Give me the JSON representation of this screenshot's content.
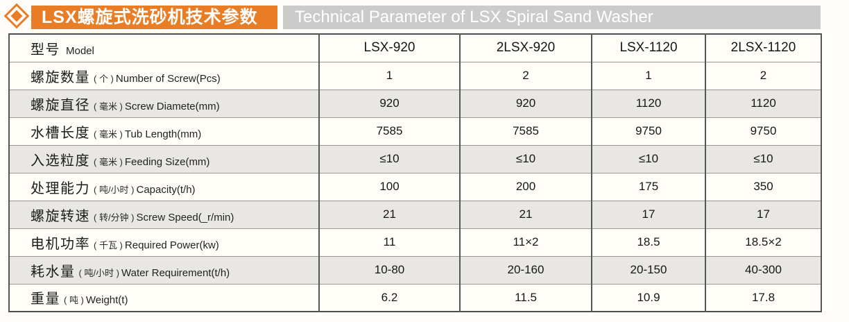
{
  "colors": {
    "accent_orange": "#e87d26",
    "banner_gray": "#cbcbcb",
    "row_shade": "#e9e7e3",
    "row_white": "#fffdf7",
    "border_dark": "#565656",
    "border_light": "#979590"
  },
  "header": {
    "icon": "diamond-icon",
    "title_zh": "LSX螺旋式洗砂机技术参数",
    "title_en": "Technical Parameter of LSX Spiral Sand Washer"
  },
  "table": {
    "rows": [
      {
        "zh": "型号",
        "paren": "",
        "en": "Model",
        "values": [
          "LSX-920",
          "2LSX-920",
          "LSX-1120",
          "2LSX-1120"
        ]
      },
      {
        "zh": "螺旋数量",
        "paren": "( 个 )",
        "en": "Number of Screw(Pcs)",
        "values": [
          "1",
          "2",
          "1",
          "2"
        ]
      },
      {
        "zh": "螺旋直径",
        "paren": "( 毫米 )",
        "en": "Screw Diamete(mm)",
        "values": [
          "920",
          "920",
          "1120",
          "1120"
        ]
      },
      {
        "zh": "水槽长度",
        "paren": "( 毫米 )",
        "en": "Tub Length(mm)",
        "values": [
          "7585",
          "7585",
          "9750",
          "9750"
        ]
      },
      {
        "zh": "入选粒度",
        "paren": "( 毫米 )",
        "en": "Feeding Size(mm)",
        "values": [
          "≤10",
          "≤10",
          "≤10",
          "≤10"
        ]
      },
      {
        "zh": "处理能力",
        "paren": "( 吨/小时 )",
        "en": "Capacity(t/h)",
        "values": [
          "100",
          "200",
          "175",
          "350"
        ]
      },
      {
        "zh": "螺旋转速",
        "paren": "( 转/分钟 )",
        "en": "Screw Speed(_r/min)",
        "values": [
          "21",
          "21",
          "17",
          "17"
        ]
      },
      {
        "zh": "电机功率",
        "paren": "( 千瓦 )",
        "en": "Required Power(kw)",
        "values": [
          "11",
          "11×2",
          "18.5",
          "18.5×2"
        ]
      },
      {
        "zh": "耗水量",
        "paren": "( 吨/小时 )",
        "en": "Water Requirement(t/h)",
        "values": [
          "10-80",
          "20-160",
          "20-150",
          "40-300"
        ]
      },
      {
        "zh": "重量",
        "paren": "( 吨 )",
        "en": "Weight(t)",
        "values": [
          "6.2",
          "11.5",
          "10.9",
          "17.8"
        ]
      }
    ]
  }
}
